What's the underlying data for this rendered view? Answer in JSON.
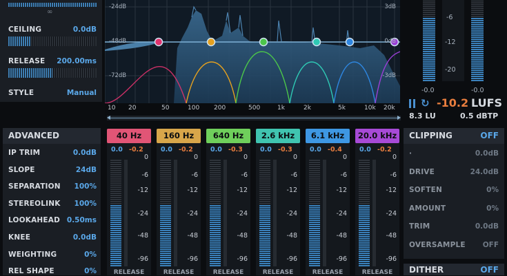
{
  "top_left": {
    "ceiling_label": "CEILING",
    "ceiling_value": "0.0dB",
    "release_label": "RELEASE",
    "release_value": "200.00ms",
    "style_label": "STYLE",
    "style_value": "Manual",
    "ceiling_level": 0.25,
    "release_level": 0.5
  },
  "advanced": {
    "title": "ADVANCED",
    "rows": [
      {
        "label": "IP TRIM",
        "value": "0.0dB"
      },
      {
        "label": "SLOPE",
        "value": "24dB"
      },
      {
        "label": "SEPARATION",
        "value": "100%"
      },
      {
        "label": "STEREOLINK",
        "value": "100%"
      },
      {
        "label": "LOOKAHEAD",
        "value": "0.50ms"
      },
      {
        "label": "KNEE",
        "value": "0.0dB"
      },
      {
        "label": "WEIGHTING",
        "value": "0%"
      },
      {
        "label": "REL SHAPE",
        "value": "0%"
      }
    ]
  },
  "spectrum": {
    "left_scale": [
      "-24dB",
      "-48dB",
      "-72dB"
    ],
    "right_scale": [
      "3dB",
      "0dB",
      "-3dB"
    ],
    "freq_labels": [
      "10",
      "20",
      "50",
      "100",
      "200",
      "500",
      "1k",
      "2k",
      "5k",
      "10k",
      "20k"
    ],
    "node_colors": [
      "#e2336e",
      "#e5a11f",
      "#4cc64a",
      "#2fc9b4",
      "#2e86e0",
      "#9a3fd6"
    ]
  },
  "bands": [
    {
      "freq": "40 Hz",
      "color": "#e15576",
      "level": "0.0",
      "gr": "-0.2",
      "meter": 0.58
    },
    {
      "freq": "160 Hz",
      "color": "#d8a64a",
      "level": "0.0",
      "gr": "-0.2",
      "meter": 0.58
    },
    {
      "freq": "640 Hz",
      "color": "#6fcf5b",
      "level": "0.0",
      "gr": "-0.3",
      "meter": 0.58
    },
    {
      "freq": "2.6 kHz",
      "color": "#40c4b0",
      "level": "0.0",
      "gr": "-0.3",
      "meter": 0.58
    },
    {
      "freq": "6.1 kHz",
      "color": "#3e97e3",
      "level": "0.0",
      "gr": "-0.4",
      "meter": 0.58
    },
    {
      "freq": "20.0 kHz",
      "color": "#a74ad6",
      "level": "0.0",
      "gr": "-0.2",
      "meter": 0.58
    }
  ],
  "band_scale": [
    "0",
    "-6",
    "-12",
    "-24",
    "-48",
    "-96"
  ],
  "band_release_label": "RELEASE",
  "output_meter": {
    "scale": [
      "-6",
      "-12",
      "-20"
    ],
    "left_peak": "-0.0",
    "right_peak": "-0.0",
    "lufs_value": "-10.2",
    "lufs_unit": "LUFS",
    "lu_value": "8.3 LU",
    "dbtp_value": "0.5 dBTP",
    "left_level": 0.78,
    "right_level": 0.78
  },
  "clipping": {
    "title": "CLIPPING",
    "state": "OFF",
    "rows": [
      {
        "label": "·",
        "value": "0.0dB"
      },
      {
        "label": "DRIVE",
        "value": "24.0dB"
      },
      {
        "label": "SOFTEN",
        "value": "0%"
      },
      {
        "label": "AMOUNT",
        "value": "0%"
      },
      {
        "label": "TRIM",
        "value": "0.0dB"
      },
      {
        "label": "OVERSAMPLE",
        "value": "OFF"
      }
    ]
  },
  "dither": {
    "title": "DITHER",
    "state": "OFF"
  }
}
